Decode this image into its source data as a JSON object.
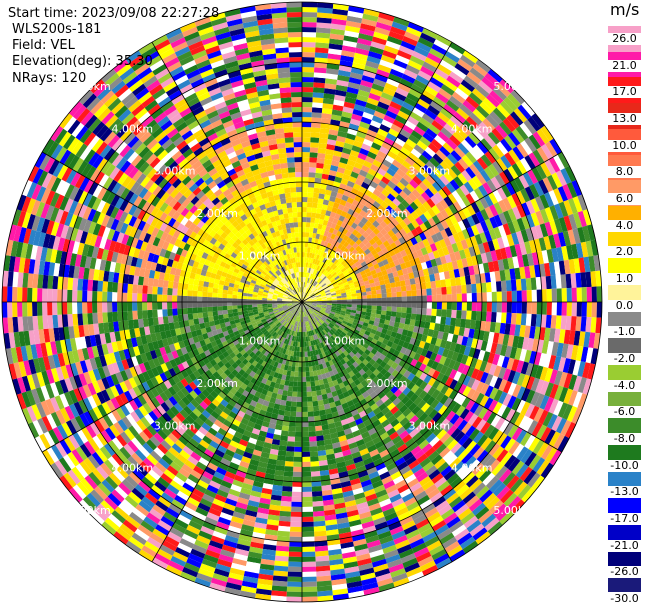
{
  "header": {
    "start_time": "Start time: 2023/09/08 22:27:28",
    "site": "WLS200s-181",
    "field": "Field: VEL",
    "elevation": "Elevation(deg): 35.30",
    "nrays": "NRays: 120"
  },
  "chart_data": {
    "type": "ppi",
    "field": "VEL",
    "nrays": 120,
    "elevation_deg": 35.3,
    "colorbar": {
      "unit": "m/s",
      "ticks": [
        "26.0",
        "21.0",
        "17.0",
        "13.0",
        "10.0",
        "8.0",
        "6.0",
        "4.0",
        "2.0",
        "1.0",
        "0.0",
        "-1.0",
        "-2.0",
        "-4.0",
        "-6.0",
        "-8.0",
        "-10.0",
        "-13.0",
        "-17.0",
        "-21.0",
        "-26.0",
        "-30.0"
      ],
      "colors": [
        "#f7a0c8",
        "#ff1aa8",
        "#ff1a1a",
        "#e8281a",
        "#ff5a3c",
        "#ff7a50",
        "#ff9a66",
        "#ffb000",
        "#ffd700",
        "#ffff00",
        "#fff39a",
        "#8a8a8a",
        "#6a6a6a",
        "#9acd32",
        "#78b03c",
        "#3c8c2a",
        "#1e7a1e",
        "#2a82c8",
        "#0000ff",
        "#0000c8",
        "#00007a",
        "#1a1a7a"
      ]
    },
    "range_rings_km": [
      1.0,
      2.0,
      3.0,
      4.0,
      5.0
    ],
    "ring_labels": [
      "1.00km",
      "2.00km",
      "3.00km",
      "4.00km",
      "5.00km"
    ],
    "max_range_km": 5.0
  }
}
